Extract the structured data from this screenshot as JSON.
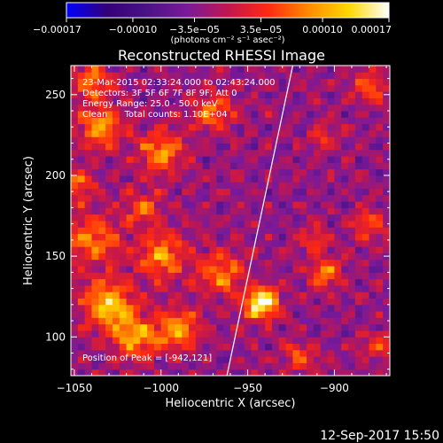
{
  "chart_data": {
    "type": "heatmap",
    "title": "Reconstructed RHESSI Image",
    "xlabel": "Heliocentric X (arcsec)",
    "ylabel": "Heliocentric Y (arcsec)",
    "xlim": [
      -1052,
      -868
    ],
    "ylim": [
      76,
      268
    ],
    "x_ticks": [
      -1050,
      -1000,
      -950,
      -900
    ],
    "x_tick_labels": [
      "−1050",
      "−1000",
      "−950",
      "−900"
    ],
    "y_ticks": [
      100,
      150,
      200,
      250
    ],
    "y_tick_labels": [
      "100",
      "150",
      "200",
      "250"
    ],
    "colorbar": {
      "range": [
        -0.00017,
        0.00017
      ],
      "ticks": [
        -0.00017,
        -0.0001,
        -3.5e-05,
        3.5e-05,
        0.0001,
        0.00017
      ],
      "tick_labels": [
        "−0.00017",
        "−0.00010",
        "−3.5e−05",
        "3.5e−05",
        "0.00010",
        "0.00017"
      ],
      "units_label": "(photons cm⁻² s⁻¹ asec⁻²)",
      "colormap": [
        "#0000ff",
        "#33007a",
        "#4b1287",
        "#7a1a9a",
        "#c0164f",
        "#ff2a10",
        "#ff8a00",
        "#ffd800",
        "#ffffff"
      ]
    },
    "info_lines": [
      "23-Mar-2015 02:33:24.000 to 02:43:24.000",
      "Detectors: 3F 5F 6F 7F 8F 9F; Att 0",
      "Energy Range: 25.0 - 50.0 keV",
      "Clean      Total counts: 1.10E+04"
    ],
    "peak_label": "Position of Peak = [-942,121]",
    "peak": [
      -942,
      121
    ],
    "limb_line": [
      [
        -962,
        76
      ],
      [
        -924,
        268
      ]
    ],
    "sources": [
      {
        "x": -942,
        "y": 121,
        "amp": 1.0,
        "sigma": 7
      },
      {
        "x": -1030,
        "y": 120,
        "amp": 0.75,
        "sigma": 10
      },
      {
        "x": -1015,
        "y": 100,
        "amp": 0.65,
        "sigma": 9
      },
      {
        "x": -990,
        "y": 105,
        "amp": 0.6,
        "sigma": 9
      },
      {
        "x": -1040,
        "y": 160,
        "amp": 0.55,
        "sigma": 11
      },
      {
        "x": -1000,
        "y": 150,
        "amp": 0.6,
        "sigma": 10
      },
      {
        "x": -965,
        "y": 140,
        "amp": 0.55,
        "sigma": 9
      },
      {
        "x": -1000,
        "y": 215,
        "amp": 0.6,
        "sigma": 9
      },
      {
        "x": -1035,
        "y": 230,
        "amp": 0.6,
        "sigma": 9
      },
      {
        "x": -970,
        "y": 240,
        "amp": 0.45,
        "sigma": 9
      },
      {
        "x": -1040,
        "y": 258,
        "amp": 0.5,
        "sigma": 8
      },
      {
        "x": -905,
        "y": 140,
        "amp": 0.5,
        "sigma": 7
      },
      {
        "x": -880,
        "y": 170,
        "amp": 0.4,
        "sigma": 7
      },
      {
        "x": -912,
        "y": 160,
        "amp": 0.35,
        "sigma": 6
      },
      {
        "x": -880,
        "y": 255,
        "amp": 0.45,
        "sigma": 7
      },
      {
        "x": -905,
        "y": 225,
        "amp": 0.3,
        "sigma": 6
      },
      {
        "x": -920,
        "y": 88,
        "amp": 0.4,
        "sigma": 7
      },
      {
        "x": -875,
        "y": 95,
        "amp": 0.35,
        "sigma": 6
      },
      {
        "x": -1050,
        "y": 195,
        "amp": 0.45,
        "sigma": 8
      },
      {
        "x": -1010,
        "y": 180,
        "amp": 0.4,
        "sigma": 8
      }
    ],
    "footer_date": "12-Sep-2017 15:50"
  }
}
